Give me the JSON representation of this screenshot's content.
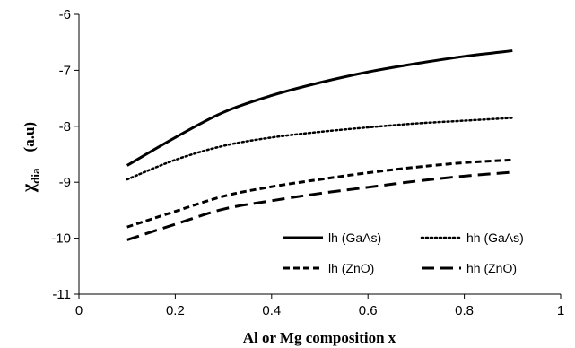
{
  "chart_data": {
    "type": "line",
    "xlabel": "Al  or Mg  composition   x",
    "ylabel_symbol": "χ",
    "ylabel_subscript": "dia",
    "ylabel_unit": "(a.u)",
    "xlim": [
      0,
      1
    ],
    "ylim": [
      -11,
      -6
    ],
    "xticks": [
      0,
      0.2,
      0.4,
      0.6,
      0.8,
      1
    ],
    "yticks": [
      -11,
      -10,
      -9,
      -8,
      -7,
      -6
    ],
    "grid": false,
    "legend_position": "bottom-right",
    "series": [
      {
        "name": "lh (GaAs)",
        "style": "solid",
        "color": "#000000",
        "x": [
          0.1,
          0.2,
          0.3,
          0.4,
          0.5,
          0.6,
          0.7,
          0.8,
          0.9
        ],
        "y": [
          -8.7,
          -8.2,
          -7.75,
          -7.45,
          -7.22,
          -7.03,
          -6.88,
          -6.75,
          -6.65
        ]
      },
      {
        "name": "hh (GaAs)",
        "style": "dotted",
        "color": "#000000",
        "x": [
          0.1,
          0.2,
          0.3,
          0.4,
          0.5,
          0.6,
          0.7,
          0.8,
          0.9
        ],
        "y": [
          -8.95,
          -8.6,
          -8.35,
          -8.2,
          -8.1,
          -8.02,
          -7.95,
          -7.9,
          -7.85
        ]
      },
      {
        "name": "lh (ZnO)",
        "style": "short-dash",
        "color": "#000000",
        "x": [
          0.1,
          0.2,
          0.3,
          0.4,
          0.5,
          0.6,
          0.7,
          0.8,
          0.9
        ],
        "y": [
          -9.8,
          -9.52,
          -9.25,
          -9.08,
          -8.95,
          -8.83,
          -8.73,
          -8.65,
          -8.6
        ]
      },
      {
        "name": "hh (ZnO)",
        "style": "long-dash",
        "color": "#000000",
        "x": [
          0.1,
          0.2,
          0.3,
          0.4,
          0.5,
          0.6,
          0.7,
          0.8,
          0.9
        ],
        "y": [
          -10.03,
          -9.75,
          -9.48,
          -9.33,
          -9.2,
          -9.09,
          -8.98,
          -8.89,
          -8.82
        ]
      }
    ]
  }
}
